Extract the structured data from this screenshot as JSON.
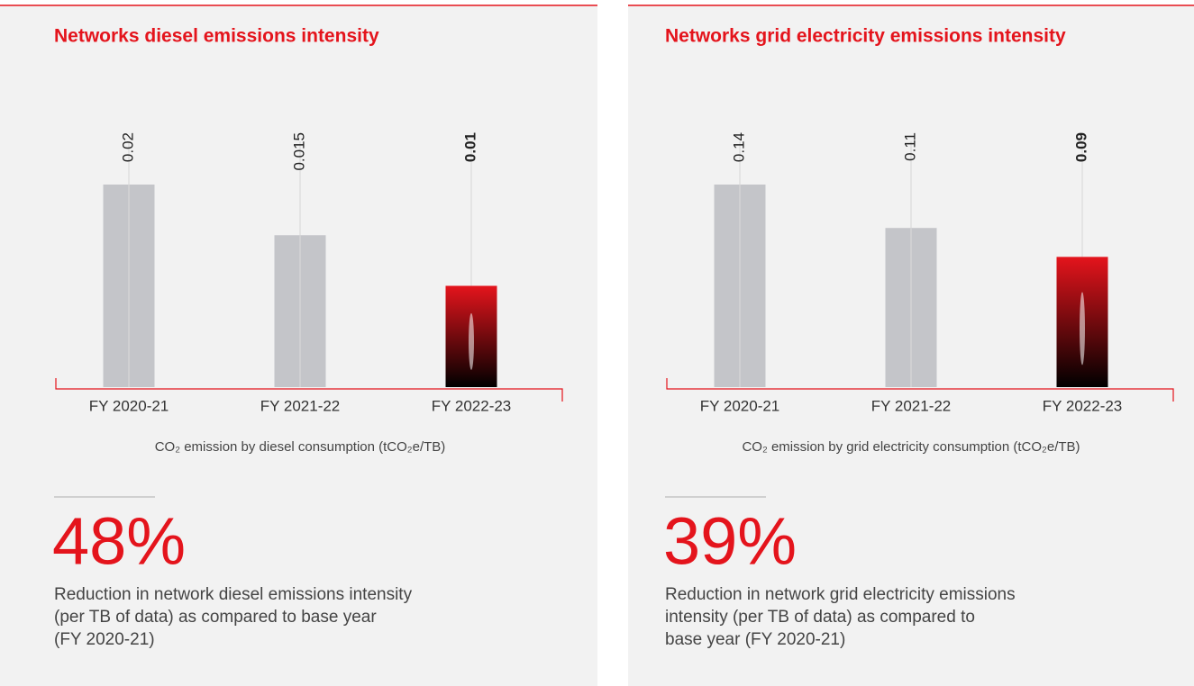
{
  "chart_data": [
    {
      "type": "bar",
      "title": "Networks diesel emissions intensity",
      "categories": [
        "FY 2020-21",
        "FY 2021-22",
        "FY 2022-23"
      ],
      "values": [
        0.02,
        0.015,
        0.01
      ],
      "colors": [
        "#c4c5c9",
        "#c4c5c9",
        "#e4141c"
      ],
      "highlight_color": "#e4141c",
      "x_label": "CO₂ emission by diesel consumption (tCO₂e/TB)",
      "stat": "48%",
      "stat_caption": [
        "Reduction in network diesel emissions intensity",
        "(per TB of data) as compared to base year",
        "(FY 2020-21)"
      ]
    },
    {
      "type": "bar",
      "title": "Networks grid electricity emissions intensity",
      "categories": [
        "FY 2020-21",
        "FY 2021-22",
        "FY 2022-23"
      ],
      "values": [
        0.14,
        0.11,
        0.09
      ],
      "colors": [
        "#c4c5c9",
        "#c4c5c9",
        "#e4141c"
      ],
      "highlight_color": "#e4141c",
      "x_label": "CO₂ emission by grid electricity consumption (tCO₂e/TB)",
      "stat": "39%",
      "stat_caption": [
        "Reduction in network grid electricity emissions",
        "intensity (per TB of data) as compared to",
        "base year (FY 2020-21)"
      ]
    }
  ]
}
